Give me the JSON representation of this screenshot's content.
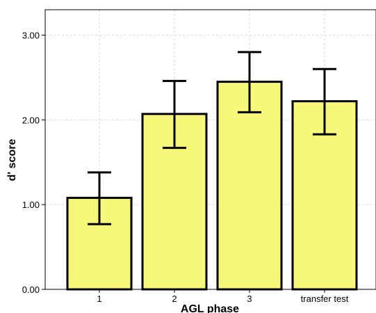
{
  "chart_data": {
    "type": "bar",
    "categories": [
      "1",
      "2",
      "3",
      "transfer test"
    ],
    "values": [
      1.08,
      2.07,
      2.45,
      2.22
    ],
    "error_low": [
      0.77,
      1.67,
      2.09,
      1.83
    ],
    "error_high": [
      1.38,
      2.46,
      2.8,
      2.6
    ],
    "title": "",
    "xlabel": "AGL phase",
    "ylabel": "d' score",
    "ylim": [
      0,
      3.3
    ],
    "yticks": [
      0,
      1,
      2,
      3
    ],
    "ytick_labels": [
      "0.00",
      "1.00",
      "2.00",
      "3.00"
    ],
    "grid": true,
    "colors": {
      "bar_fill": "#f7f77a",
      "bar_stroke": "#000000",
      "grid": "#d9d9d9",
      "axis": "#000000"
    }
  }
}
